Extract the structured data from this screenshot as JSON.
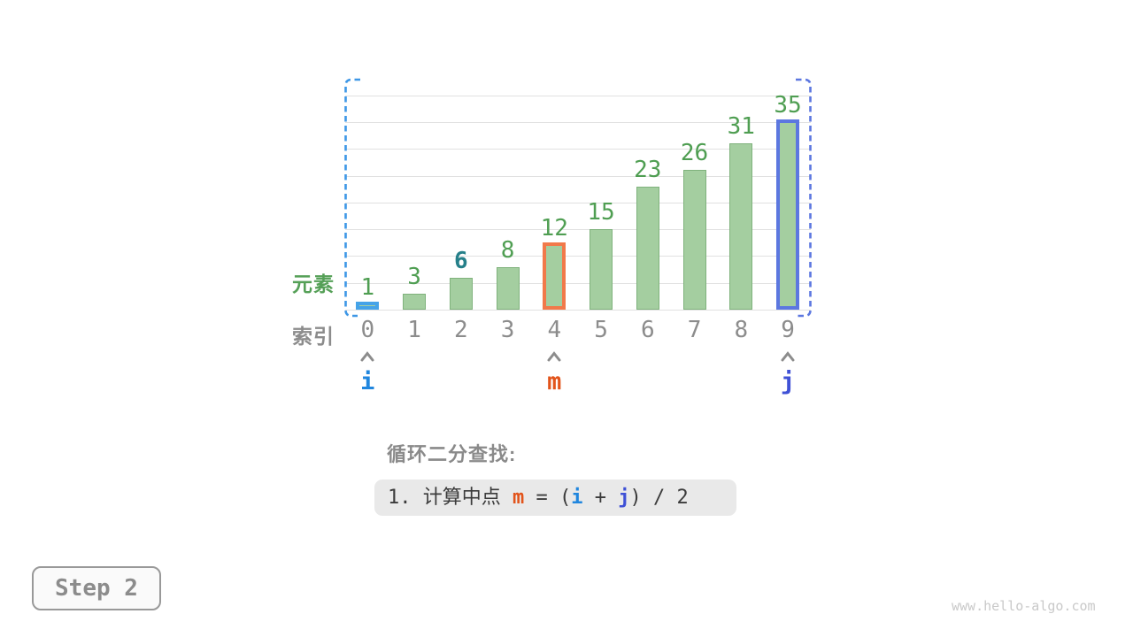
{
  "figure": {
    "background": "#FFFFFF"
  },
  "chart_data": {
    "type": "bar",
    "title": "",
    "categories": [
      "0",
      "1",
      "2",
      "3",
      "4",
      "5",
      "6",
      "7",
      "8",
      "9"
    ],
    "values": [
      1,
      3,
      6,
      8,
      12,
      15,
      23,
      26,
      31,
      35
    ],
    "xlabel": "索引",
    "ylabel": "元素",
    "ylim": [
      0,
      40
    ],
    "grid": true,
    "grid_step": 5,
    "grid_color": "#E1E1E1",
    "legend": "none",
    "element_axis_label": "元素",
    "element_axis_color": "#55A057",
    "index_axis_label": "索引",
    "index_axis_color": "#8C8C8C",
    "bar_fill": "#A4CEA0",
    "bar_border": "#7FB27C",
    "value_label_color": "#4F9E52",
    "index_label_color": "#8C8C8C",
    "target_index": 2,
    "target_value": 6,
    "target_label_color": "#26808A",
    "highlighted_bars": [
      {
        "index": 0,
        "role": "i",
        "border_color": "#45A3E8"
      },
      {
        "index": 4,
        "role": "m",
        "border_color": "#F1794A"
      },
      {
        "index": 9,
        "role": "j",
        "border_color": "#5C77E0"
      }
    ],
    "pointers": [
      {
        "index": 0,
        "label": "i",
        "color": "#2086DE"
      },
      {
        "index": 4,
        "label": "m",
        "color": "#E2541B"
      },
      {
        "index": 9,
        "label": "j",
        "color": "#3F51D6"
      }
    ],
    "caret_color": "#8C8C8C",
    "range_brackets": {
      "left_color": "#3E97E6",
      "right_color": "#5C77E0"
    }
  },
  "caption": {
    "title": "循环二分查找:",
    "title_color": "#8A8A8A",
    "box_background": "#E9E9E9",
    "formula_segments": [
      {
        "text": "1. 计算中点 ",
        "color": "#3B3B3B",
        "bold": false
      },
      {
        "text": "m",
        "color": "#E2541B",
        "bold": true
      },
      {
        "text": " = (",
        "color": "#3B3B3B",
        "bold": false
      },
      {
        "text": "i",
        "color": "#2086DE",
        "bold": true
      },
      {
        "text": " + ",
        "color": "#3B3B3B",
        "bold": false
      },
      {
        "text": "j",
        "color": "#3F51D6",
        "bold": true
      },
      {
        "text": ") / 2",
        "color": "#3B3B3B",
        "bold": false
      }
    ]
  },
  "step_indicator": {
    "label": "Step 2",
    "text_color": "#8C8C8C",
    "border_color": "#999999",
    "background": "#FAFAFA"
  },
  "watermark": {
    "text": "www.hello-algo.com",
    "color": "#C9C9C9"
  }
}
